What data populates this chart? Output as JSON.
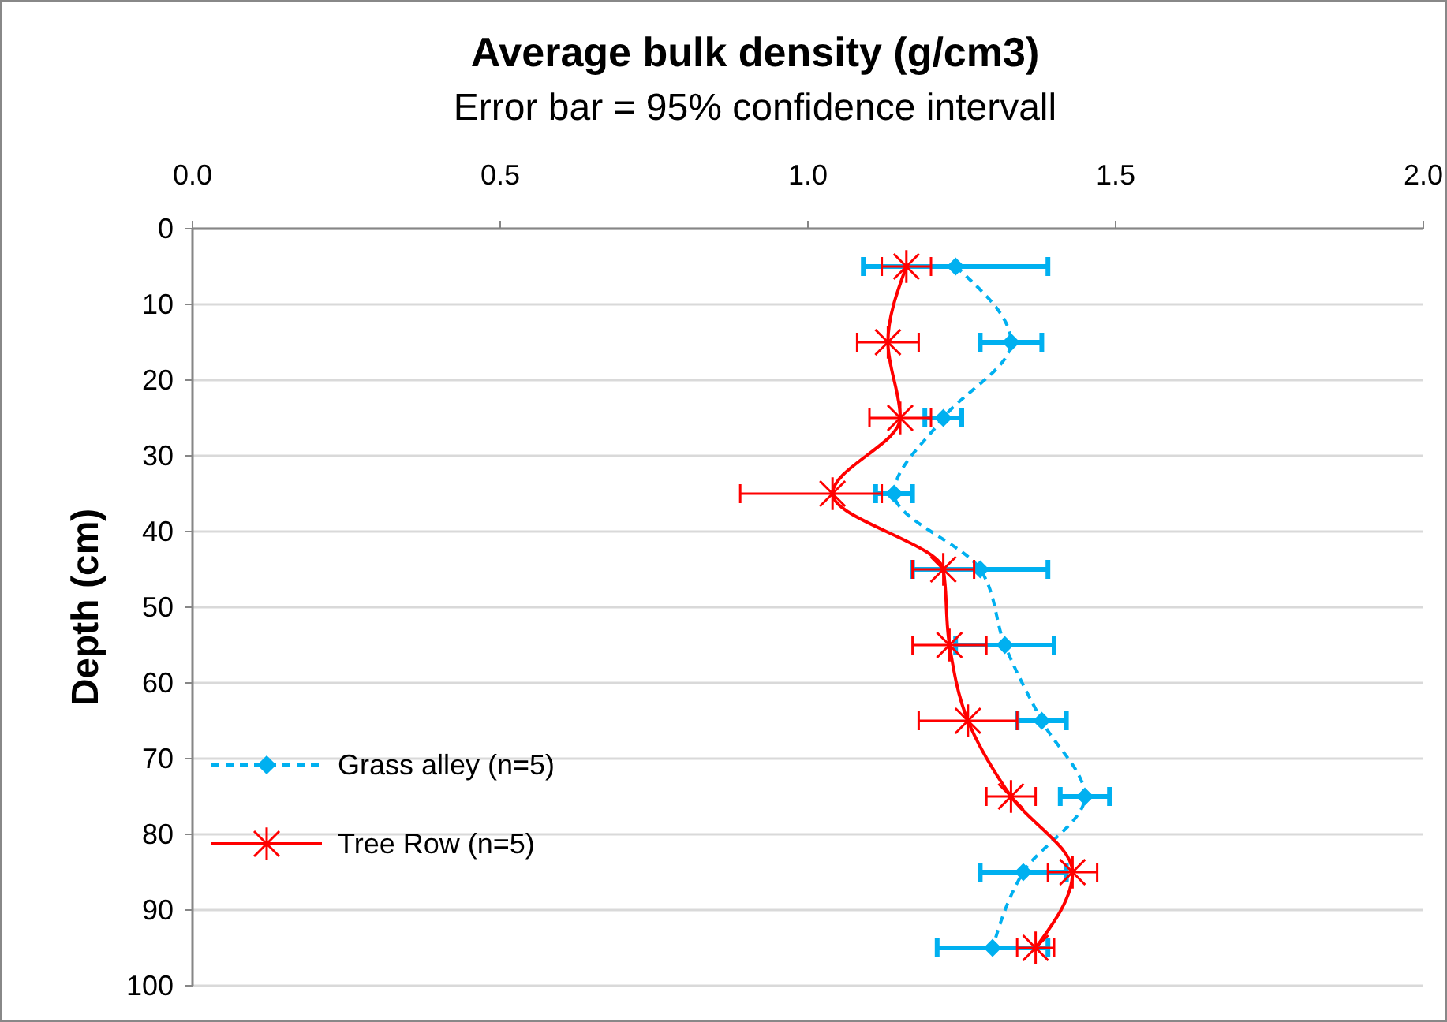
{
  "chart_data": {
    "type": "line",
    "title": "Average bulk density (g/cm3)",
    "subtitle": "Error bar = 95% confidence intervall",
    "ylabel": "Depth (cm)",
    "orientation": "horizontal",
    "x": [
      5,
      15,
      25,
      35,
      45,
      55,
      65,
      75,
      85,
      95
    ],
    "xlim": [
      0,
      2
    ],
    "xticks": [
      {
        "value": 0,
        "label": "0.0"
      },
      {
        "value": 0.5,
        "label": "0.5"
      },
      {
        "value": 1,
        "label": "1.0"
      },
      {
        "value": 1.5,
        "label": "1.5"
      },
      {
        "value": 2,
        "label": "2.0"
      }
    ],
    "ylim": [
      100,
      0
    ],
    "yticks": [
      0,
      10,
      20,
      30,
      40,
      50,
      60,
      70,
      80,
      90,
      100
    ],
    "grid": "y",
    "legend": "left",
    "series": [
      {
        "name": "Grass alley (n=5)",
        "color": "#00b0f0",
        "marker": "diamond",
        "line_style": "dashed",
        "values": [
          1.24,
          1.33,
          1.22,
          1.14,
          1.28,
          1.32,
          1.38,
          1.45,
          1.35,
          1.3
        ],
        "errors": [
          0.15,
          0.05,
          0.03,
          0.03,
          0.11,
          0.08,
          0.04,
          0.04,
          0.07,
          0.09
        ]
      },
      {
        "name": "Tree Row (n=5)",
        "color": "#ff0000",
        "marker": "star",
        "line_style": "solid",
        "values": [
          1.16,
          1.13,
          1.15,
          1.04,
          1.22,
          1.23,
          1.26,
          1.33,
          1.43,
          1.37
        ],
        "errors": [
          0.04,
          0.05,
          0.05,
          [
            0.89,
            1.12
          ],
          0.05,
          0.06,
          0.08,
          0.04,
          0.04,
          0.03
        ]
      }
    ]
  }
}
